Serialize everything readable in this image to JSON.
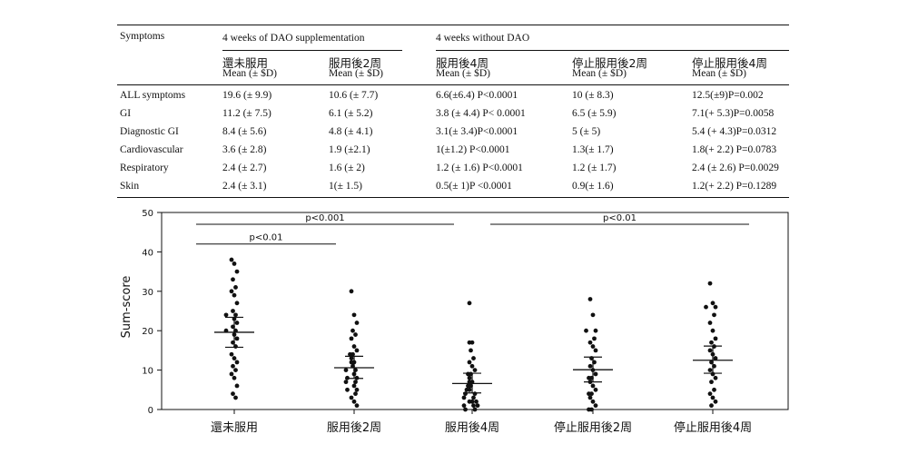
{
  "table": {
    "symptoms_header": "Symptoms",
    "group_headers": [
      "4 weeks of DAO supplementation",
      "4 weeks without DAO"
    ],
    "columns": [
      {
        "name": "還未服用",
        "sub": "Mean (± $D)"
      },
      {
        "name": "服用後2周",
        "sub": "Mean (± $D)"
      },
      {
        "name": "服用後4周",
        "sub": "Mean (± $D)"
      },
      {
        "name": "停止服用後2周",
        "sub": "Mean (± $D)"
      },
      {
        "name": "停止服用後4周",
        "sub": "Mean (± $D)"
      }
    ],
    "rows": [
      {
        "label": "ALL symptoms",
        "cells": [
          "19.6 (± 9.9)",
          "10.6 (± 7.7)",
          "6.6(±6.4) P<0.0001",
          "10 (± 8.3)",
          "12.5(±9)P=0.002"
        ]
      },
      {
        "label": "GI",
        "cells": [
          "11.2 (± 7.5)",
          "6.1 (± 5.2)",
          "3.8 (± 4.4) P< 0.0001",
          "6.5 (± 5.9)",
          "7.1(+ 5.3)P=0.0058"
        ]
      },
      {
        "label": "Diagnostic GI",
        "cells": [
          "8.4 (± 5.6)",
          "4.8 (± 4.1)",
          "3.1(± 3.4)P<0.0001",
          "5 (± 5)",
          "5.4 (+ 4.3)P=0.0312"
        ]
      },
      {
        "label": "Cardiovascular",
        "cells": [
          "3.6 (± 2.8)",
          "1.9 (±2.1)",
          "1(±1.2) P<0.0001",
          "1.3(± 1.7)",
          "1.8(+ 2.2) P=0.0783"
        ]
      },
      {
        "label": "Respiratory",
        "cells": [
          "2.4 (± 2.7)",
          "1.6 (± 2)",
          "1.2 (± 1.6) P<0.0001",
          "1.2 (± 1.7)",
          "2.4 (± 2.6) P=0.0029"
        ]
      },
      {
        "label": "Skin",
        "cells": [
          "2.4 (± 3.1)",
          "1(± 1.5)",
          "0.5(± 1)P <0.0001",
          "0.9(± 1.6)",
          "1.2(+ 2.2) P=0.1289"
        ]
      }
    ]
  },
  "chart_data": {
    "type": "scatter",
    "ylabel": "Sum-score",
    "ylim": [
      0,
      50
    ],
    "yticks": [
      0,
      10,
      20,
      30,
      40,
      50
    ],
    "categories": [
      "還未服用",
      "服用後2周",
      "服用後4周",
      "停止服用後2周",
      "停止服用後4周"
    ],
    "groups": [
      {
        "mean": 19.6,
        "err_low": 15.8,
        "err_high": 23.4,
        "points": [
          38,
          37,
          35,
          33,
          31,
          30,
          29,
          27,
          25,
          24,
          24,
          23,
          22,
          21,
          20,
          20,
          19,
          18,
          17,
          16,
          14,
          13,
          12,
          11,
          10,
          9,
          8,
          6,
          4,
          3
        ]
      },
      {
        "mean": 10.6,
        "err_low": 7.9,
        "err_high": 13.5,
        "points": [
          30,
          24,
          22,
          20,
          19,
          18,
          16,
          15,
          14,
          14,
          13,
          12,
          12,
          11,
          10,
          10,
          9,
          8,
          8,
          7,
          7,
          6,
          5,
          5,
          4,
          3,
          2,
          1
        ]
      },
      {
        "mean": 6.6,
        "err_low": 4.2,
        "err_high": 9.2,
        "points": [
          27,
          17,
          17,
          15,
          13,
          12,
          11,
          10,
          9,
          9,
          8,
          7,
          7,
          6,
          6,
          5,
          5,
          4,
          4,
          3,
          3,
          2,
          2,
          2,
          1,
          1,
          1,
          0,
          0
        ]
      },
      {
        "mean": 10.1,
        "err_low": 7.0,
        "err_high": 13.3,
        "points": [
          28,
          24,
          20,
          20,
          18,
          17,
          16,
          15,
          13,
          12,
          11,
          10,
          9,
          8,
          8,
          7,
          6,
          5,
          4,
          4,
          3,
          2,
          1,
          0,
          0
        ]
      },
      {
        "mean": 12.5,
        "err_low": 9.2,
        "err_high": 16.1,
        "points": [
          32,
          27,
          26,
          26,
          24,
          22,
          20,
          18,
          17,
          16,
          15,
          14,
          13,
          12,
          11,
          10,
          9,
          8,
          7,
          5,
          4,
          3,
          2,
          1
        ]
      }
    ],
    "comparisons": [
      {
        "label": "p<0.001",
        "from": 0,
        "to": 2,
        "level": 47
      },
      {
        "label": "p<0.01",
        "from": 0,
        "to": 1,
        "level": 42
      },
      {
        "label": "p<0.01",
        "from": 2,
        "to": 4,
        "level": 47
      }
    ]
  }
}
